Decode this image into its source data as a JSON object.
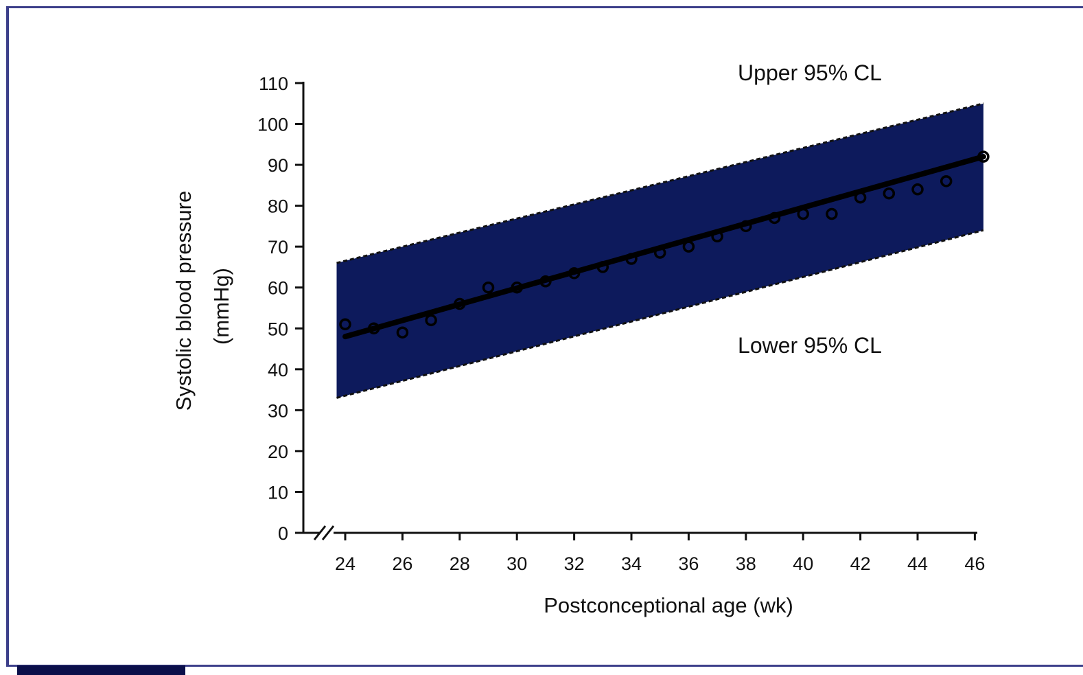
{
  "chart_data": {
    "type": "line",
    "xlabel": "Postconceptional age (wk)",
    "ylabel_line1": "Systolic blood pressure",
    "ylabel_line2": "(mmHg)",
    "xlim": [
      23.5,
      46.5
    ],
    "ylim": [
      0,
      110
    ],
    "x_ticks": [
      24,
      26,
      28,
      30,
      32,
      34,
      36,
      38,
      40,
      42,
      44,
      46
    ],
    "y_ticks": [
      0,
      10,
      20,
      30,
      40,
      50,
      60,
      70,
      80,
      90,
      100,
      110
    ],
    "x_axis_break": true,
    "band": {
      "x": [
        23.7,
        46.3
      ],
      "upper": [
        66,
        105
      ],
      "lower": [
        33,
        74
      ],
      "color": "#0d1a5c",
      "upper_label": "Upper 95% CL",
      "lower_label": "Lower 95% CL"
    },
    "fit_line": {
      "x": [
        24,
        46.3
      ],
      "y": [
        48,
        92
      ]
    },
    "series": [
      {
        "x": [
          24,
          25,
          26,
          27,
          28,
          29,
          30,
          31,
          32,
          33,
          34,
          35,
          36,
          37,
          38,
          39,
          40,
          41,
          42,
          43,
          44,
          45,
          46.3
        ],
        "values": [
          51,
          50,
          49,
          52,
          56,
          60,
          60,
          61.5,
          63.5,
          65,
          67,
          68.5,
          70,
          72.5,
          75,
          77,
          78,
          78,
          82,
          83,
          84,
          86,
          92
        ]
      }
    ],
    "grid": false
  }
}
